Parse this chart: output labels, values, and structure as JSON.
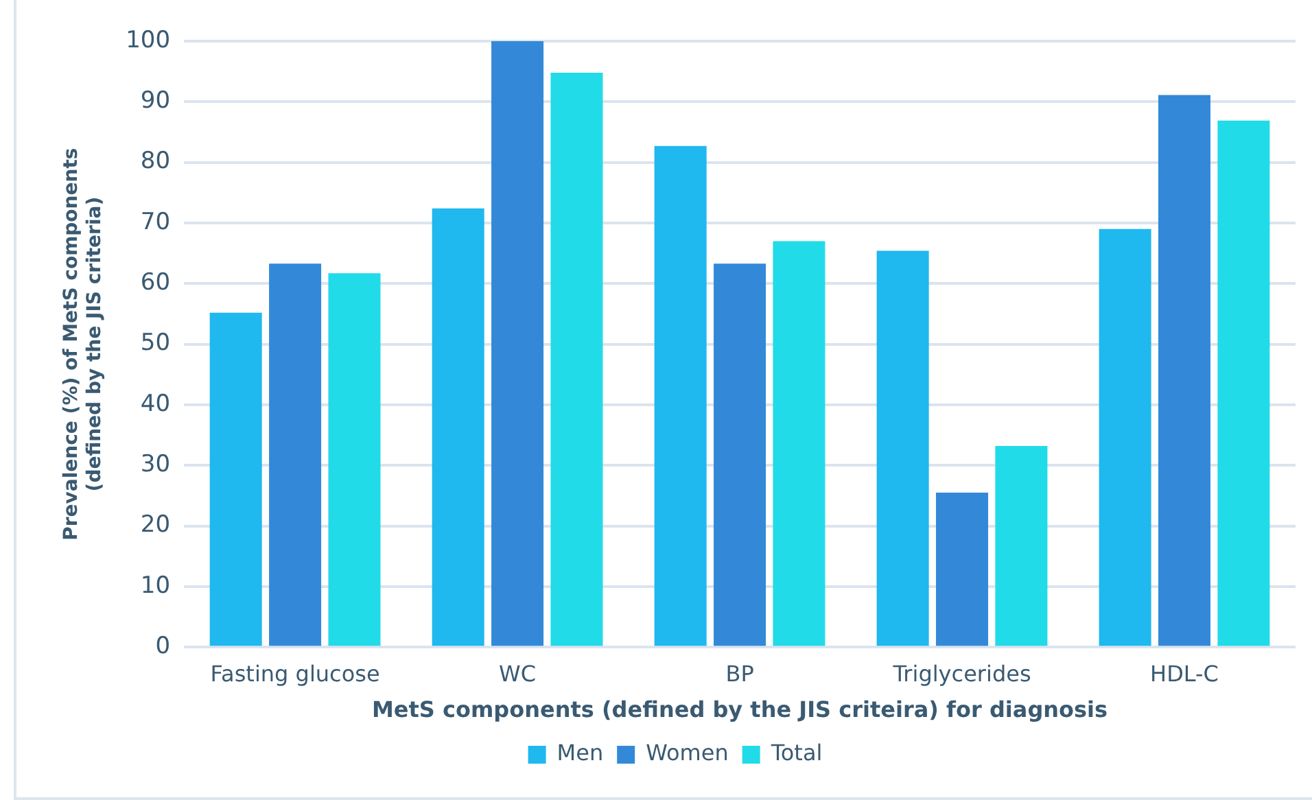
{
  "chart_data": {
    "type": "bar",
    "xlabel": "MetS components (defined by the JIS criteira) for diagnosis",
    "ylabel": "Prevalence (%) of MetS components (defined by the JIS criteria)",
    "categories": [
      "Fasting glucose",
      "WC",
      "BP",
      "Triglycerides",
      "HDL-C"
    ],
    "series": [
      {
        "name": "Men",
        "color": "#1fb8ef",
        "values": [
          55.2,
          72.4,
          82.7,
          65.4,
          69.0
        ]
      },
      {
        "name": "Women",
        "color": "#3389d8",
        "values": [
          63.3,
          100,
          63.3,
          25.5,
          91.1
        ]
      },
      {
        "name": "Total",
        "color": "#22dbe8",
        "values": [
          61.7,
          94.8,
          67.0,
          33.2,
          86.9
        ]
      }
    ],
    "ylim": [
      0,
      100
    ],
    "yticks": [
      0,
      10,
      20,
      30,
      40,
      50,
      60,
      70,
      80,
      90,
      100
    ],
    "grid": "y",
    "legend": "bottom"
  }
}
